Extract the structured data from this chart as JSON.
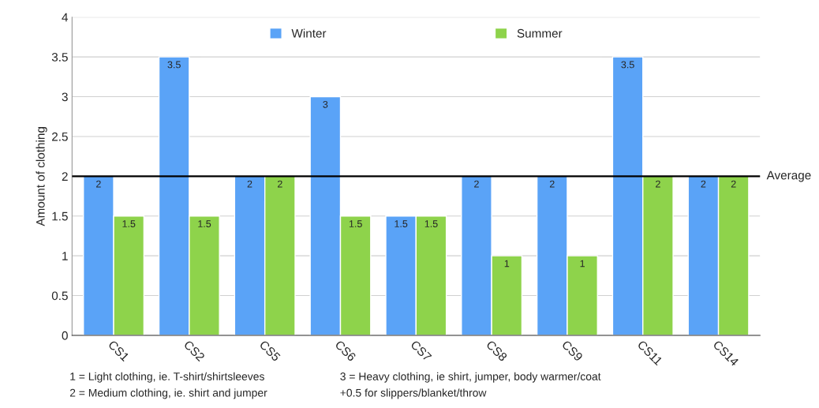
{
  "chart_data": {
    "type": "bar",
    "ylabel": "Amount of clothing",
    "categories": [
      "CS1",
      "CS2",
      "CS5",
      "CS6",
      "CS7",
      "CS8",
      "CS9",
      "CS11",
      "CS14"
    ],
    "series": [
      {
        "name": "Winter",
        "color": "#5aa3f7",
        "values": [
          2,
          3.5,
          2,
          3,
          1.5,
          2,
          2,
          3.5,
          2
        ]
      },
      {
        "name": "Summer",
        "color": "#8ed34b",
        "values": [
          1.5,
          1.5,
          2,
          1.5,
          1.5,
          1,
          1,
          2,
          2
        ]
      }
    ],
    "ylim": [
      0,
      4
    ],
    "yticks": [
      0,
      0.5,
      1,
      1.5,
      2,
      2.5,
      3,
      3.5,
      4
    ],
    "grid": "y",
    "legend": "top",
    "data_labels": true,
    "ref_lines": [
      {
        "axis": "y",
        "value": 2,
        "label": "Average",
        "color": "#000000"
      }
    ],
    "annotations": [
      "1 = Light clothing, ie. T-shirt/shirtsleeves",
      "3 = Heavy clothing, ie shirt, jumper, body warmer/coat",
      "2 = Medium clothing, ie. shirt and jumper",
      "+0.5 for slippers/blanket/throw"
    ]
  }
}
